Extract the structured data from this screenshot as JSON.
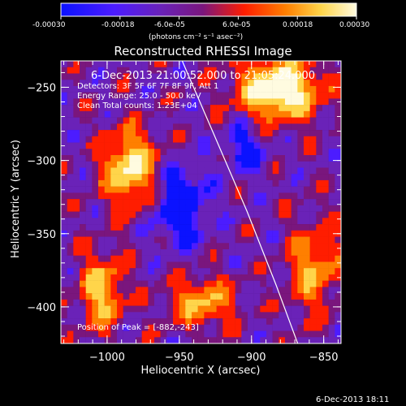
{
  "colorbar": {
    "ticks": [
      "-0.00030",
      "-0.00018",
      "-6.0e-05",
      "6.0e-05",
      "0.00018",
      "0.00030"
    ],
    "unit_label": "(photons cm⁻² s⁻¹ asec⁻²)",
    "colors": [
      "#0b12ff",
      "#4c1cff",
      "#6a22b8",
      "#7a167d",
      "#ff1d00",
      "#ff7f00",
      "#ffd54a",
      "#fffbe0"
    ]
  },
  "chart_data": {
    "type": "heatmap",
    "title": "Reconstructed RHESSI Image",
    "subtitle": "6-Dec-2013 21:00:52.000 to 21:05:24.000",
    "annotations": [
      "Detectors: 3F 5F 6F 7F 8F 9F, Att 1",
      "Energy Range: 25.0 - 50.0 keV",
      "Clean    Total counts: 1.23E+04",
      "Position of Peak = [-882,-243]"
    ],
    "xlabel": "Heliocentric X (arcsec)",
    "ylabel": "Heliocentric Y (arcsec)",
    "xlim": [
      -1032,
      -838
    ],
    "ylim": [
      -425,
      -232
    ],
    "xticks": [
      -1000,
      -950,
      -900,
      -850
    ],
    "yticks": [
      -250,
      -300,
      -350,
      -400
    ],
    "xtick_labels": [
      "−1000",
      "−950",
      "−900",
      "−850"
    ],
    "ytick_labels": [
      "−250",
      "−300",
      "−350",
      "−400"
    ],
    "colorscale_range": [
      -0.0003,
      0.0003
    ],
    "peak_position": [
      -882,
      -243
    ],
    "limb": {
      "points": [
        [
          -948,
          -232
        ],
        [
          -927,
          -280
        ],
        [
          -903,
          -335
        ],
        [
          -883,
          -385
        ],
        [
          -868,
          -425
        ]
      ]
    }
  },
  "footer": {
    "timestamp": "6-Dec-2013 18:11"
  }
}
